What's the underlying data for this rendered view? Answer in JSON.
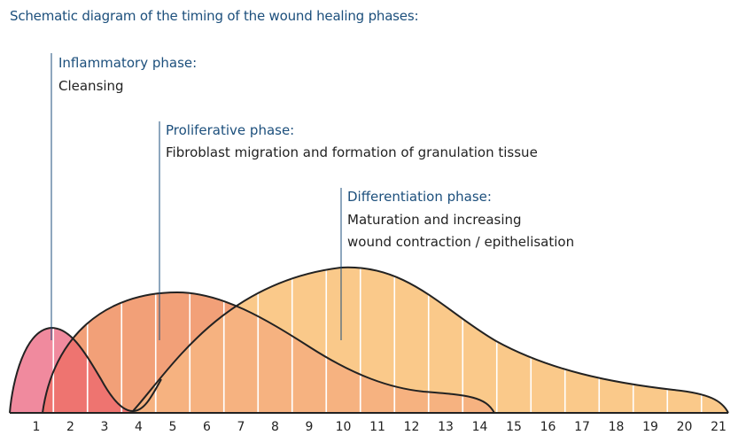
{
  "title": "Schematic diagram of the timing of the wound healing phases:",
  "phases": [
    {
      "name": "Inflammatory phase:",
      "description": [
        "Cleansing"
      ],
      "color": "#f08a9e"
    },
    {
      "name": "Proliferative phase:",
      "description": [
        "Fibroblast migration and formation of granulation tissue"
      ],
      "color": "#f2a078"
    },
    {
      "name": "Differentiation phase:",
      "description": [
        "Maturation and increasing",
        "wound contraction / epithelisation"
      ],
      "color": "#fac98a"
    }
  ],
  "axis": {
    "ticks": [
      "1",
      "2",
      "3",
      "4",
      "5",
      "6",
      "7",
      "8",
      "9",
      "10",
      "11",
      "12",
      "13",
      "14",
      "15",
      "16",
      "17",
      "18",
      "19",
      "20",
      "21"
    ]
  },
  "colors": {
    "accent_text": "#1c4f7c",
    "outline": "#222222",
    "inflammatory": "#f08a9e",
    "proliferative": "#f2a078",
    "differentiation": "#fac98a"
  }
}
